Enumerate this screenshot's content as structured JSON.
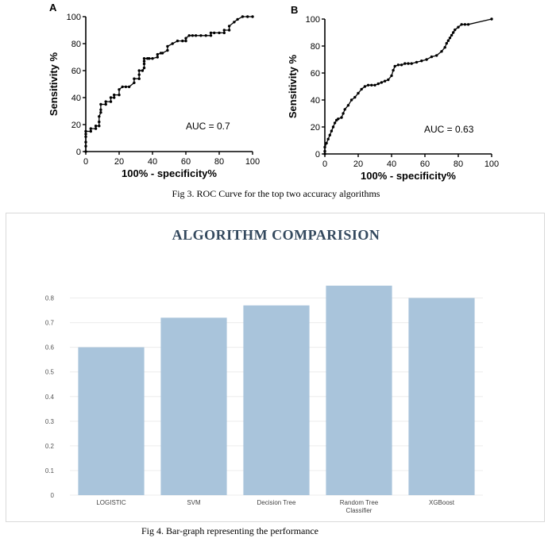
{
  "figure3": {
    "caption": "Fig 3. ROC Curve for the top two accuracy algorithms"
  },
  "figure4": {
    "caption": "Fig 4. Bar-graph representing the performance"
  },
  "chart_data": [
    {
      "type": "line",
      "panel_label": "A",
      "xlabel": "100% - specificity%",
      "ylabel": "Sensitivity %",
      "annotation": "AUC = 0.7",
      "xlim": [
        0,
        100
      ],
      "ylim": [
        0,
        100
      ],
      "xticks": [
        0,
        20,
        40,
        60,
        80,
        100
      ],
      "yticks": [
        0,
        20,
        40,
        60,
        80,
        100
      ],
      "grid": false,
      "marker": "dot",
      "color": "#000000",
      "series": [
        {
          "x": [
            0,
            0,
            0,
            0,
            0,
            0,
            3,
            3,
            6,
            6,
            8,
            8,
            8,
            9,
            9,
            9,
            12,
            12,
            15,
            15,
            17,
            17,
            20,
            20,
            22,
            24,
            26,
            29,
            29,
            32,
            32,
            32,
            34,
            35,
            35,
            35,
            35,
            37,
            38,
            40,
            43,
            43,
            45,
            46,
            49,
            49,
            52,
            55,
            58,
            60,
            60,
            62,
            64,
            66,
            69,
            72,
            75,
            75,
            77,
            80,
            83,
            83,
            86,
            86,
            89,
            91,
            94,
            97,
            100
          ],
          "y": [
            0,
            4,
            7,
            11,
            13,
            15,
            15,
            17,
            17,
            19,
            19,
            22,
            26,
            29,
            31,
            35,
            35,
            37,
            37,
            40,
            40,
            42,
            42,
            46,
            48,
            48,
            48,
            51,
            54,
            54,
            57,
            60,
            60,
            62,
            65,
            67,
            69,
            69,
            69,
            69,
            70,
            72,
            73,
            73,
            75,
            78,
            80,
            82,
            82,
            82,
            84,
            86,
            86,
            86,
            86,
            86,
            86,
            88,
            88,
            88,
            88,
            90,
            90,
            93,
            96,
            98,
            100,
            100,
            100
          ]
        }
      ]
    },
    {
      "type": "line",
      "panel_label": "B",
      "xlabel": "100% - specificity%",
      "ylabel": "Sensitivity %",
      "annotation": "AUC = 0.63",
      "xlim": [
        0,
        100
      ],
      "ylim": [
        0,
        100
      ],
      "xticks": [
        0,
        20,
        40,
        60,
        80,
        100
      ],
      "yticks": [
        0,
        20,
        40,
        60,
        80,
        100
      ],
      "grid": false,
      "marker": "dot",
      "color": "#000000",
      "series": [
        {
          "x": [
            0,
            0,
            0,
            1,
            2,
            3,
            4,
            5,
            6,
            7,
            8,
            10,
            11,
            12,
            14,
            16,
            18,
            20,
            22,
            24,
            26,
            28,
            30,
            32,
            34,
            36,
            38,
            40,
            41,
            42,
            44,
            46,
            48,
            50,
            52,
            55,
            58,
            61,
            64,
            67,
            70,
            72,
            73,
            74,
            75,
            76,
            77,
            78,
            80,
            82,
            84,
            86,
            100
          ],
          "y": [
            0,
            2,
            5,
            8,
            11,
            14,
            17,
            20,
            23,
            25,
            26,
            27,
            30,
            33,
            36,
            40,
            42,
            45,
            48,
            50,
            51,
            51,
            51,
            52,
            53,
            54,
            55,
            58,
            62,
            65,
            66,
            66,
            67,
            67,
            67,
            68,
            69,
            70,
            72,
            73,
            76,
            79,
            82,
            84,
            86,
            88,
            90,
            92,
            94,
            96,
            96,
            96,
            100
          ]
        }
      ]
    },
    {
      "type": "bar",
      "title": "ALGORITHM COMPARISION",
      "categories": [
        "LOGISTIC",
        "SVM",
        "Decision Tree",
        "Random Tree Classifier",
        "XGBoost"
      ],
      "values": [
        0.6,
        0.72,
        0.77,
        0.85,
        0.8
      ],
      "ylim": [
        0,
        0.85
      ],
      "yticks": [
        "0",
        "0.1",
        "0.2",
        "0.3",
        "0.4",
        "0.5",
        "0.6",
        "0.7",
        "0.8"
      ],
      "xlabel": "",
      "ylabel": "",
      "grid": true,
      "legend": false,
      "bar_color": "#a9c4db",
      "grid_color": "#ececec",
      "title_color": "#34495e"
    }
  ]
}
